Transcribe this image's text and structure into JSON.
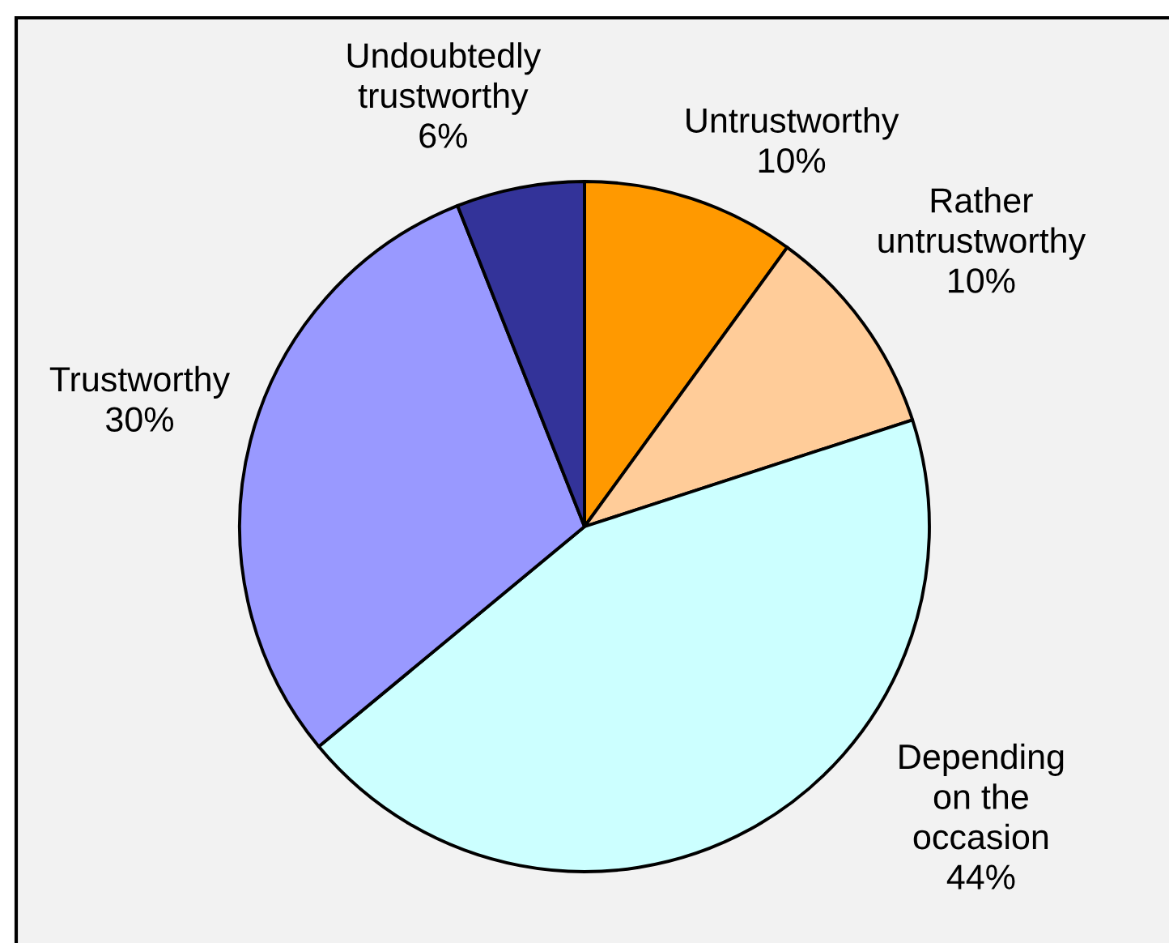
{
  "chart_data": {
    "type": "pie",
    "categories": [
      "Untrustworthy",
      "Rather untrustworthy",
      "Depending on the occasion",
      "Trustworthy",
      "Undoubtedly trustworthy"
    ],
    "values": [
      10,
      10,
      44,
      30,
      6
    ],
    "colors": [
      "#ff9900",
      "#ffcc99",
      "#ccffff",
      "#9999ff",
      "#333399"
    ],
    "value_labels": [
      "10%",
      "10%",
      "44%",
      "30%",
      "6%"
    ]
  }
}
